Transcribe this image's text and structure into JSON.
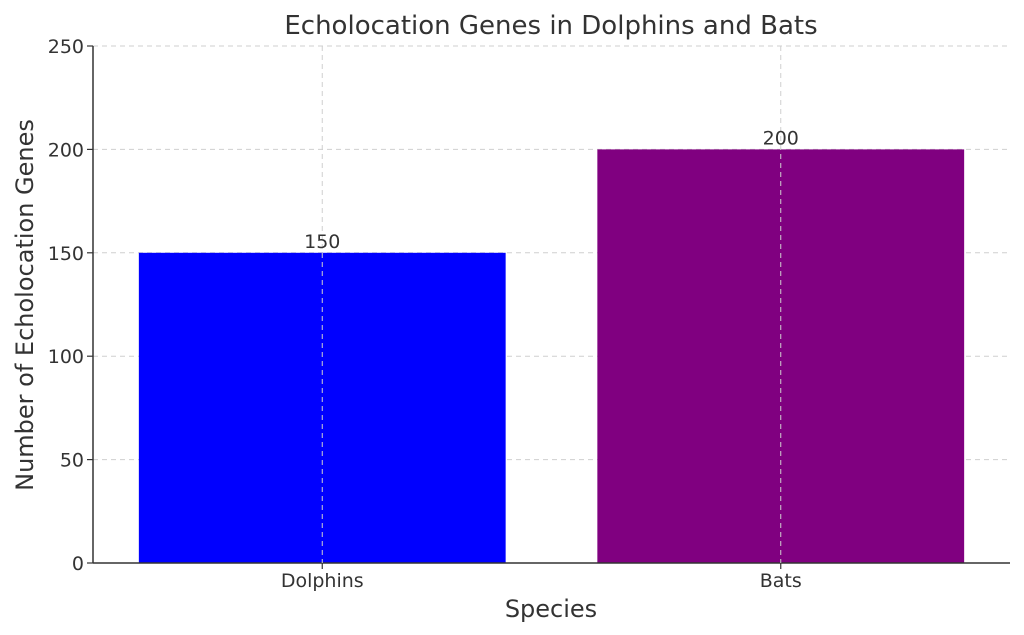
{
  "chart_data": {
    "type": "bar",
    "title": "Echolocation Genes in Dolphins and Bats",
    "xlabel": "Species",
    "ylabel": "Number of Echolocation Genes",
    "categories": [
      "Dolphins",
      "Bats"
    ],
    "values": [
      150,
      200
    ],
    "value_labels": [
      "150",
      "200"
    ],
    "colors": [
      "#0000ff",
      "#800080"
    ],
    "ylim": [
      0,
      250
    ],
    "yticks": [
      0,
      50,
      100,
      150,
      200,
      250
    ],
    "ytick_labels": [
      "0",
      "50",
      "100",
      "150",
      "200",
      "250"
    ],
    "grid": true,
    "legend": false
  }
}
